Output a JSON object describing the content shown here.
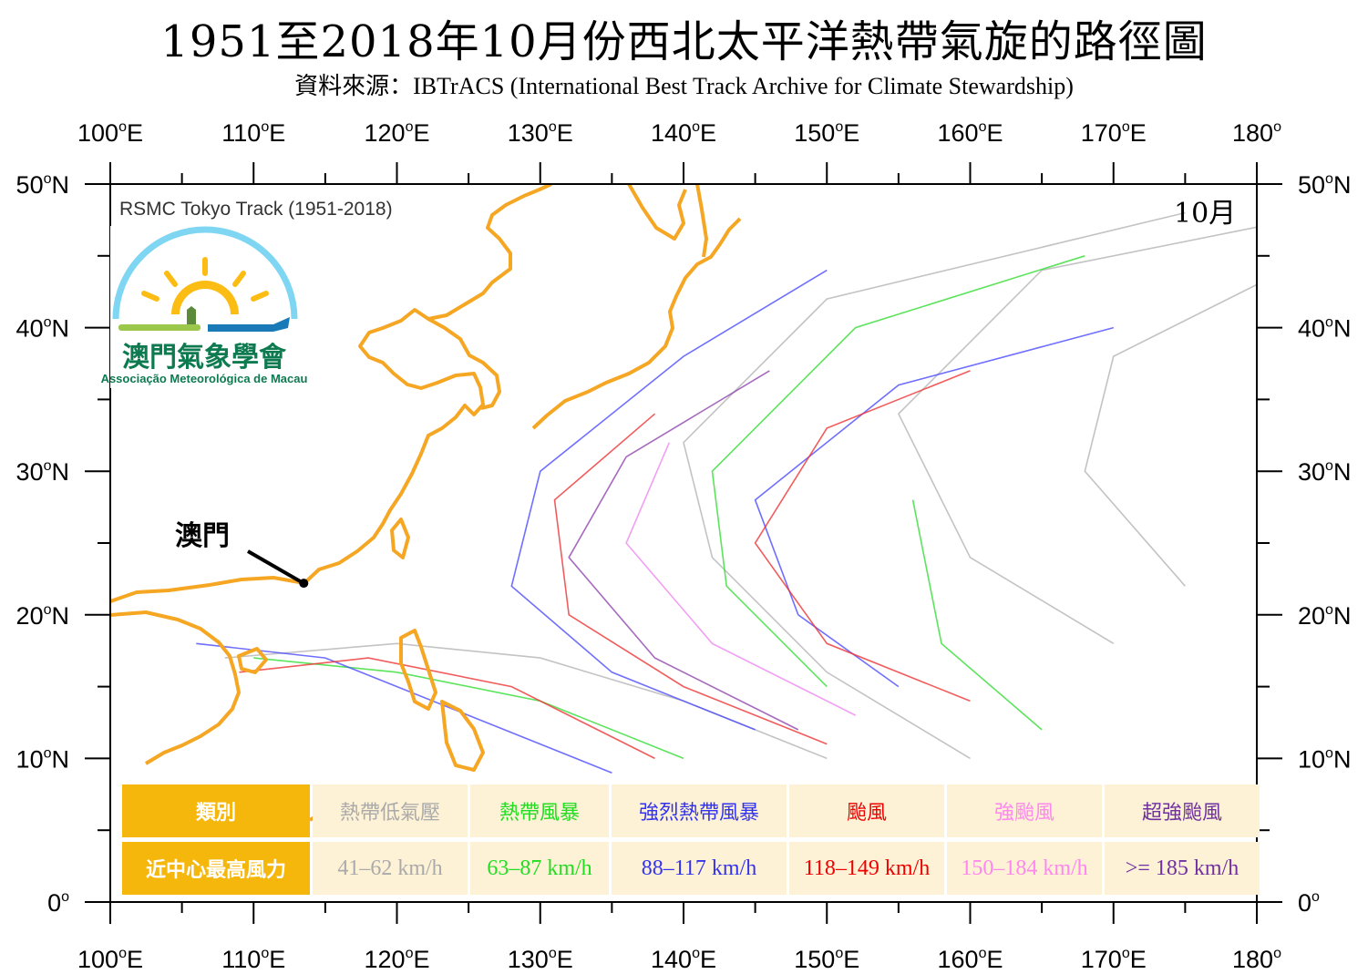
{
  "title": "1951至2018年10月份西北太平洋熱帶氣旋的路徑圖",
  "subtitle": "資料來源：IBTrACS (International Best Track Archive for Climate Stewardship)",
  "panel_label": "RSMC Tokyo Track (1951-2018)",
  "month_label": "10月",
  "macau_label": "澳門",
  "logo": {
    "name_cn": "澳門氣象學會",
    "name_pt": "Associação Meteorológica de Macau"
  },
  "map": {
    "lon_range": [
      100,
      180
    ],
    "lat_range": [
      0,
      50
    ],
    "lon_ticks": [
      {
        "value": "100",
        "deg": "o",
        "hemi": "E"
      },
      {
        "value": "110",
        "deg": "o",
        "hemi": "E"
      },
      {
        "value": "120",
        "deg": "o",
        "hemi": "E"
      },
      {
        "value": "130",
        "deg": "o",
        "hemi": "E"
      },
      {
        "value": "140",
        "deg": "o",
        "hemi": "E"
      },
      {
        "value": "150",
        "deg": "o",
        "hemi": "E"
      },
      {
        "value": "160",
        "deg": "o",
        "hemi": "E"
      },
      {
        "value": "170",
        "deg": "o",
        "hemi": "E"
      },
      {
        "value": "180",
        "deg": "o",
        "hemi": ""
      }
    ],
    "lat_ticks": [
      {
        "value": "0",
        "deg": "o",
        "hemi": ""
      },
      {
        "value": "10",
        "deg": "o",
        "hemi": "N"
      },
      {
        "value": "20",
        "deg": "o",
        "hemi": "N"
      },
      {
        "value": "30",
        "deg": "o",
        "hemi": "N"
      },
      {
        "value": "40",
        "deg": "o",
        "hemi": "N"
      },
      {
        "value": "50",
        "deg": "o",
        "hemi": "N"
      }
    ],
    "macau_point": {
      "lon": 113.5,
      "lat": 22.2
    },
    "coast_color": "#f5a623",
    "sample_tracks": [
      {
        "color": "#b4b4b4",
        "points": [
          [
            160,
            10
          ],
          [
            150,
            16
          ],
          [
            142,
            24
          ],
          [
            140,
            32
          ],
          [
            150,
            42
          ],
          [
            175,
            48
          ]
        ]
      },
      {
        "color": "#b4b4b4",
        "points": [
          [
            170,
            18
          ],
          [
            160,
            24
          ],
          [
            155,
            34
          ],
          [
            165,
            44
          ],
          [
            180,
            47
          ]
        ]
      },
      {
        "color": "#b4b4b4",
        "points": [
          [
            150,
            10
          ],
          [
            140,
            14
          ],
          [
            130,
            17
          ],
          [
            120,
            18
          ],
          [
            108,
            17
          ]
        ]
      },
      {
        "color": "#b4b4b4",
        "points": [
          [
            175,
            22
          ],
          [
            168,
            30
          ],
          [
            170,
            38
          ],
          [
            180,
            43
          ]
        ]
      },
      {
        "color": "#33dd33",
        "points": [
          [
            140,
            10
          ],
          [
            130,
            14
          ],
          [
            120,
            16
          ],
          [
            110,
            17
          ]
        ]
      },
      {
        "color": "#33dd33",
        "points": [
          [
            150,
            15
          ],
          [
            143,
            22
          ],
          [
            142,
            30
          ],
          [
            152,
            40
          ],
          [
            168,
            45
          ]
        ]
      },
      {
        "color": "#33dd33",
        "points": [
          [
            165,
            12
          ],
          [
            158,
            18
          ],
          [
            156,
            28
          ]
        ]
      },
      {
        "color": "#4b4bff",
        "points": [
          [
            145,
            12
          ],
          [
            135,
            16
          ],
          [
            128,
            22
          ],
          [
            130,
            30
          ],
          [
            140,
            38
          ],
          [
            150,
            44
          ]
        ]
      },
      {
        "color": "#4b4bff",
        "points": [
          [
            155,
            15
          ],
          [
            148,
            20
          ],
          [
            145,
            28
          ],
          [
            155,
            36
          ],
          [
            170,
            40
          ]
        ]
      },
      {
        "color": "#4b4bff",
        "points": [
          [
            135,
            9
          ],
          [
            125,
            13
          ],
          [
            115,
            17
          ],
          [
            106,
            18
          ]
        ]
      },
      {
        "color": "#ee3333",
        "points": [
          [
            150,
            11
          ],
          [
            140,
            15
          ],
          [
            132,
            20
          ],
          [
            131,
            28
          ],
          [
            138,
            34
          ]
        ]
      },
      {
        "color": "#ee3333",
        "points": [
          [
            160,
            14
          ],
          [
            150,
            18
          ],
          [
            145,
            25
          ],
          [
            150,
            33
          ],
          [
            160,
            37
          ]
        ]
      },
      {
        "color": "#ee3333",
        "points": [
          [
            138,
            10
          ],
          [
            128,
            15
          ],
          [
            118,
            17
          ],
          [
            109,
            16
          ]
        ]
      },
      {
        "color": "#ee88ee",
        "points": [
          [
            152,
            13
          ],
          [
            142,
            18
          ],
          [
            136,
            25
          ],
          [
            139,
            32
          ]
        ]
      },
      {
        "color": "#8e44ad",
        "points": [
          [
            148,
            12
          ],
          [
            138,
            17
          ],
          [
            132,
            24
          ],
          [
            136,
            31
          ],
          [
            146,
            37
          ]
        ]
      }
    ]
  },
  "legend": {
    "header_category": "類別",
    "header_wind": "近中心最高風力",
    "classes": [
      {
        "name": "熱帶低氣壓",
        "range": "41–62 km/h",
        "color": "#aaaaaa"
      },
      {
        "name": "熱帶風暴",
        "range": "63–87 km/h",
        "color": "#22dd22"
      },
      {
        "name": "強烈熱帶風暴",
        "range": "88–117 km/h",
        "color": "#3333ee"
      },
      {
        "name": "颱風",
        "range": "118–149 km/h",
        "color": "#ee0000"
      },
      {
        "name": "強颱風",
        "range": "150–184 km/h",
        "color": "#ff88ee"
      },
      {
        "name": "超強颱風",
        "range": ">= 185 km/h",
        "color": "#7030a0"
      }
    ]
  }
}
